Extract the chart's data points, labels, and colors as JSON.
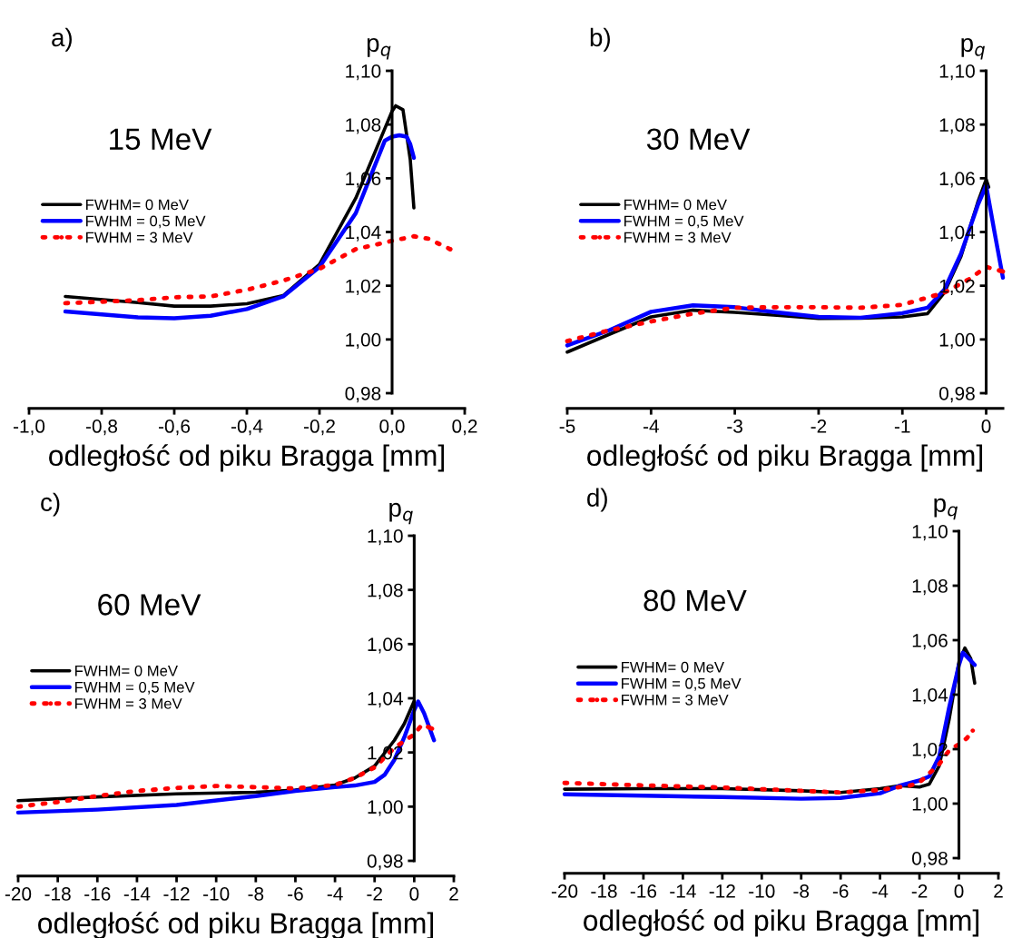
{
  "chart_data": [
    {
      "type": "line",
      "title": "a)",
      "subtitle": "15 MeV",
      "xlabel": "odległość od piku Bragga [mm]",
      "ylabel": "p$_{q}$",
      "xlim": [
        -1.0,
        0.2
      ],
      "xticks": [
        {
          "value": -1.0,
          "label": "-1,0"
        },
        {
          "value": -0.8,
          "label": "-0,8"
        },
        {
          "value": -0.6,
          "label": "-0,6"
        },
        {
          "value": -0.4,
          "label": "-0,4"
        },
        {
          "value": -0.2,
          "label": "-0,2"
        },
        {
          "value": 0.0,
          "label": "0,0"
        },
        {
          "value": 0.2,
          "label": "0,2"
        }
      ],
      "ylim": [
        0.98,
        1.1
      ],
      "yticks": [
        {
          "value": 0.98,
          "label": "0,98"
        },
        {
          "value": 1.0,
          "label": "1,00"
        },
        {
          "value": 1.02,
          "label": "1,02"
        },
        {
          "value": 1.04,
          "label": "1,04"
        },
        {
          "value": 1.06,
          "label": "1,06"
        },
        {
          "value": 1.08,
          "label": "1,08"
        },
        {
          "value": 1.1,
          "label": "1,10"
        }
      ],
      "legend": "left",
      "grid": false,
      "series": [
        {
          "name": "FWHM= 0 MeV",
          "color": "#000000",
          "line_style": "solid",
          "x": [
            -0.9,
            -0.7,
            -0.6,
            -0.5,
            -0.4,
            -0.3,
            -0.2,
            -0.1,
            0.0,
            0.01,
            0.03,
            0.05,
            0.06
          ],
          "values": [
            1.016,
            1.0137,
            1.0124,
            1.0124,
            1.0133,
            1.0163,
            1.028,
            1.0526,
            1.085,
            1.087,
            1.0855,
            1.067,
            1.049
          ]
        },
        {
          "name": "FWHM = 0,5 MeV",
          "color": "#0000ff",
          "line_style": "solid",
          "x": [
            -0.9,
            -0.7,
            -0.6,
            -0.5,
            -0.4,
            -0.3,
            -0.2,
            -0.1,
            -0.02,
            0.0,
            0.02,
            0.04,
            0.05,
            0.06
          ],
          "values": [
            1.0104,
            1.0082,
            1.0079,
            1.0088,
            1.0113,
            1.016,
            1.027,
            1.047,
            1.074,
            1.0755,
            1.076,
            1.0755,
            1.0727,
            1.0676
          ]
        },
        {
          "name": "FWHM = 3 MeV",
          "color": "#ff0000",
          "line_style": "dotted",
          "x": [
            -0.9,
            -0.7,
            -0.6,
            -0.5,
            -0.4,
            -0.3,
            -0.2,
            -0.1,
            0.0,
            0.06,
            0.1,
            0.16
          ],
          "values": [
            1.0135,
            1.0146,
            1.0157,
            1.016,
            1.0185,
            1.0219,
            1.0263,
            1.0336,
            1.0367,
            1.0384,
            1.0375,
            1.0336
          ]
        }
      ]
    },
    {
      "type": "line",
      "title": "b)",
      "subtitle": "30 MeV",
      "xlabel": "odległość od piku Bragga [mm]",
      "ylabel": "p$_{q}$",
      "xlim": [
        -5,
        0.2
      ],
      "xticks": [
        -5,
        -4,
        -3,
        -2,
        -1,
        0
      ],
      "ylim": [
        0.98,
        1.1
      ],
      "yticks": [
        {
          "value": 0.98,
          "label": "0,98"
        },
        {
          "value": 1.0,
          "label": "1,00"
        },
        {
          "value": 1.02,
          "label": "1,02"
        },
        {
          "value": 1.04,
          "label": "1,04"
        },
        {
          "value": 1.06,
          "label": "1,06"
        },
        {
          "value": 1.08,
          "label": "1,08"
        },
        {
          "value": 1.1,
          "label": "1,10"
        }
      ],
      "legend": "left",
      "grid": false,
      "series": [
        {
          "name": "FWHM= 0 MeV",
          "color": "#000000",
          "line_style": "solid",
          "x": [
            -5,
            -4.5,
            -4,
            -3.5,
            -3,
            -2.5,
            -2,
            -1.5,
            -1,
            -0.7,
            -0.5,
            -0.3,
            -0.1,
            0,
            0.03
          ],
          "values": [
            0.9953,
            1.0019,
            1.0084,
            1.0109,
            1.0101,
            1.009,
            1.0078,
            1.0079,
            1.0084,
            1.0096,
            1.0174,
            1.031,
            1.0511,
            1.0596,
            1.0567
          ]
        },
        {
          "name": "FWHM = 0,5 MeV",
          "color": "#0000ff",
          "line_style": "solid",
          "x": [
            -5,
            -4.5,
            -4,
            -3.5,
            -3,
            -2.5,
            -2,
            -1.5,
            -1,
            -0.7,
            -0.5,
            -0.3,
            -0.1,
            0,
            0.1,
            0.2
          ],
          "values": [
            0.9978,
            1.0034,
            1.0103,
            1.0127,
            1.012,
            1.0101,
            1.0084,
            1.0081,
            1.0098,
            1.0118,
            1.0185,
            1.032,
            1.05,
            1.0573,
            1.0399,
            1.023
          ]
        },
        {
          "name": "FWHM = 3 MeV",
          "color": "#ff0000",
          "line_style": "dotted",
          "x": [
            -5,
            -4.5,
            -4,
            -3.5,
            -3,
            -2.5,
            -2,
            -1.5,
            -1,
            -0.5,
            -0.2,
            0,
            0.2
          ],
          "values": [
            0.9994,
            1.0034,
            1.0067,
            1.0096,
            1.0118,
            1.012,
            1.012,
            1.0118,
            1.0129,
            1.0174,
            1.0225,
            1.027,
            1.0253
          ]
        }
      ]
    },
    {
      "type": "line",
      "title": "c)",
      "subtitle": "60 MeV",
      "xlabel": "odległość od piku Bragga [mm]",
      "ylabel": "p$_{q}$",
      "xlim": [
        -20,
        2
      ],
      "xticks": [
        -20,
        -18,
        -16,
        -14,
        -12,
        -10,
        -8,
        -6,
        -4,
        -2,
        0,
        2
      ],
      "ylim": [
        0.98,
        1.1
      ],
      "yticks": [
        {
          "value": 0.98,
          "label": "0,98"
        },
        {
          "value": 1.0,
          "label": "1,00"
        },
        {
          "value": 1.02,
          "label": "1,02"
        },
        {
          "value": 1.04,
          "label": "1,04"
        },
        {
          "value": 1.06,
          "label": "1,06"
        },
        {
          "value": 1.08,
          "label": "1,08"
        },
        {
          "value": 1.1,
          "label": "1,10"
        }
      ],
      "legend": "left",
      "grid": false,
      "series": [
        {
          "name": "FWHM= 0 MeV",
          "color": "#000000",
          "line_style": "solid",
          "x": [
            -20,
            -16,
            -12,
            -8,
            -6,
            -4,
            -3,
            -2,
            -1,
            -0.5,
            0
          ],
          "values": [
            1.0022,
            1.0036,
            1.0047,
            1.0053,
            1.0061,
            1.008,
            1.0106,
            1.015,
            1.0245,
            1.0306,
            1.039
          ]
        },
        {
          "name": "FWHM = 0,5 MeV",
          "color": "#0000ff",
          "line_style": "solid",
          "x": [
            -20,
            -16,
            -12,
            -8,
            -6,
            -4,
            -3,
            -2,
            -1.5,
            -1,
            -0.5,
            0,
            0.2,
            0.5,
            1.0
          ],
          "values": [
            0.9978,
            0.9989,
            1.0006,
            1.0039,
            1.0058,
            1.0072,
            1.0078,
            1.0091,
            1.0117,
            1.0173,
            1.0256,
            1.0356,
            1.0388,
            1.0345,
            1.0245
          ]
        },
        {
          "name": "FWHM = 3 MeV",
          "color": "#ff0000",
          "line_style": "dotted",
          "x": [
            -20,
            -18,
            -16,
            -14,
            -12,
            -10,
            -8,
            -6,
            -4,
            -3,
            -2,
            -1,
            0,
            0.4,
            0.9
          ],
          "values": [
            1.0,
            1.0017,
            1.0039,
            1.0058,
            1.0069,
            1.0076,
            1.0072,
            1.0067,
            1.008,
            1.0106,
            1.0145,
            1.0217,
            1.0267,
            1.0303,
            1.0288
          ]
        }
      ]
    },
    {
      "type": "line",
      "title": "d)",
      "subtitle": "80 MeV",
      "xlabel": "odległość od piku Bragga [mm]",
      "ylabel": "p$_{q}$",
      "xlim": [
        -20,
        2
      ],
      "xticks": [
        -20,
        -18,
        -16,
        -14,
        -12,
        -10,
        -8,
        -6,
        -4,
        -2,
        0,
        2
      ],
      "ylim": [
        0.98,
        1.1
      ],
      "yticks": [
        {
          "value": 0.98,
          "label": "0,98"
        },
        {
          "value": 1.0,
          "label": "1,00"
        },
        {
          "value": 1.02,
          "label": "1,02"
        },
        {
          "value": 1.04,
          "label": "1,04"
        },
        {
          "value": 1.06,
          "label": "1,06"
        },
        {
          "value": 1.08,
          "label": "1,08"
        },
        {
          "value": 1.1,
          "label": "1,10"
        }
      ],
      "legend": "left",
      "grid": false,
      "series": [
        {
          "name": "FWHM= 0 MeV",
          "color": "#000000",
          "line_style": "solid",
          "x": [
            -20,
            -16,
            -12,
            -8,
            -6,
            -4,
            -3,
            -2,
            -1.5,
            -1,
            -0.5,
            0,
            0.3,
            0.6,
            0.8
          ],
          "values": [
            1.0053,
            1.0055,
            1.0055,
            1.0047,
            1.0041,
            1.0055,
            1.0066,
            1.0061,
            1.0072,
            1.0139,
            1.0308,
            1.052,
            1.0571,
            1.0532,
            1.0442
          ]
        },
        {
          "name": "FWHM = 0,5 MeV",
          "color": "#0000ff",
          "line_style": "solid",
          "x": [
            -20,
            -16,
            -12,
            -8,
            -6,
            -4,
            -3,
            -2,
            -1.5,
            -1,
            -0.5,
            0,
            0.2,
            0.5,
            0.8
          ],
          "values": [
            1.0034,
            1.0029,
            1.0024,
            1.0018,
            1.0021,
            1.0038,
            1.0066,
            1.0085,
            1.01,
            1.0173,
            1.0352,
            1.0509,
            1.0554,
            1.0532,
            1.0509
          ]
        },
        {
          "name": "FWHM = 3 MeV",
          "color": "#ff0000",
          "line_style": "dotted",
          "x": [
            -20,
            -16,
            -12,
            -8,
            -6,
            -4,
            -2.5,
            -2,
            -1,
            -0.5,
            0,
            0.4,
            0.7
          ],
          "values": [
            1.0076,
            1.0067,
            1.0059,
            1.0047,
            1.0041,
            1.005,
            1.0066,
            1.0078,
            1.0145,
            1.0195,
            1.0218,
            1.024,
            1.0268
          ]
        }
      ]
    }
  ]
}
